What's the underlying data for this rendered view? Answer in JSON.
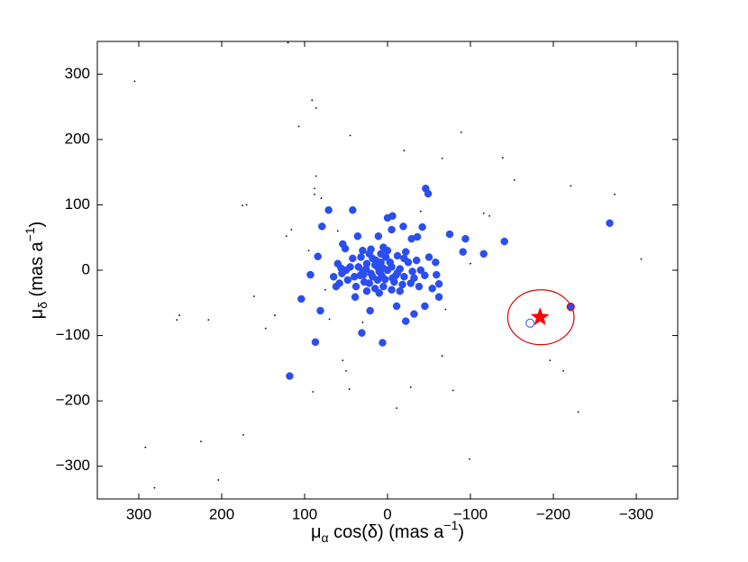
{
  "chart_data": {
    "type": "scatter",
    "xlabel": [
      "μ",
      "α",
      " cos(δ) (mas a",
      "−1",
      ")"
    ],
    "ylabel": [
      "μ",
      "δ",
      " (mas a",
      "−1",
      ")"
    ],
    "xlim": [
      350,
      -350
    ],
    "ylim": [
      -350,
      350
    ],
    "xticks": [
      300,
      200,
      100,
      0,
      {
        "value": -100,
        "label": "−100"
      },
      {
        "value": -200,
        "label": "−200"
      },
      {
        "value": -300,
        "label": "−300"
      }
    ],
    "yticks": [
      {
        "value": -300,
        "label": "−300"
      },
      {
        "value": -200,
        "label": "−200"
      },
      {
        "value": -100,
        "label": "−100"
      },
      0,
      100,
      200,
      300
    ],
    "series": [
      {
        "marker": "dot",
        "color": "#000000",
        "x": [
          305,
          91,
          86,
          107,
          120,
          45,
          -89,
          -20,
          -66,
          -139,
          -153,
          -221,
          -274,
          86,
          88,
          80,
          175,
          170,
          88,
          -306,
          122,
          116,
          -116,
          -123,
          161,
          216,
          251,
          254,
          147,
          136,
          -222,
          -196,
          -212,
          -230,
          54,
          50,
          90,
          46,
          -28,
          -11,
          -66,
          -79,
          -99,
          292,
          225,
          204,
          174,
          281,
          70,
          -70,
          60,
          -40,
          95,
          -100,
          75,
          30
        ],
        "y": [
          289,
          260,
          248,
          220,
          348,
          206,
          211,
          183,
          171,
          172,
          138,
          129,
          116,
          144,
          116,
          110,
          99,
          100,
          125,
          17,
          52,
          62,
          87,
          83,
          -40,
          -76,
          -69,
          -76,
          -89,
          -69,
          -59,
          -138,
          -154,
          -217,
          -138,
          -154,
          -186,
          -182,
          -179,
          -211,
          -131,
          -184,
          -289,
          -271,
          -262,
          -321,
          -252,
          -333,
          -75,
          -60,
          60,
          90,
          30,
          10,
          -30,
          -80
        ]
      },
      {
        "marker": "o",
        "color": "#2a4ef0",
        "x": [
          -268,
          -141,
          -116,
          -46,
          -49,
          71,
          79,
          42,
          118,
          87,
          81,
          104,
          6,
          31,
          -22,
          -32,
          -45,
          -62,
          -19,
          -42,
          -36,
          -75,
          -91,
          -94,
          -59,
          -58,
          93,
          84,
          62,
          51,
          36,
          11,
          -5,
          -6,
          0,
          -62,
          21,
          -11,
          39,
          56,
          54,
          -29,
          -54,
          29,
          0,
          5,
          10,
          -5,
          15,
          -10,
          20,
          8,
          -15,
          25,
          12,
          -20,
          30,
          2,
          18,
          -8,
          28,
          35,
          -25,
          5,
          22,
          -12,
          40,
          -30,
          15,
          32,
          -18,
          0,
          10,
          45,
          -35,
          38,
          -28,
          25,
          5,
          -5,
          48,
          -40,
          20,
          -22,
          30,
          42,
          -15,
          50,
          12,
          7,
          -3,
          18,
          -12,
          26,
          3,
          14,
          -6,
          33,
          22,
          -20,
          8,
          -32,
          55,
          -45,
          60,
          -50,
          58,
          65,
          -38
        ],
        "y": [
          72,
          44,
          25,
          125,
          117,
          92,
          67,
          92,
          -162,
          -110,
          -62,
          -44,
          -111,
          -96,
          -78,
          -67,
          -55,
          -41,
          67,
          66,
          51,
          55,
          28,
          48,
          -7,
          12,
          -7,
          21,
          -25,
          33,
          52,
          52,
          62,
          83,
          80,
          -21,
          -62,
          -55,
          -41,
          3,
          40,
          48,
          -28,
          -7,
          0,
          3,
          -2,
          5,
          8,
          -8,
          -5,
          12,
          2,
          10,
          -15,
          -10,
          -3,
          20,
          18,
          -18,
          -18,
          5,
          12,
          -25,
          25,
          22,
          -10,
          -2,
          -28,
          20,
          -22,
          30,
          -35,
          5,
          15,
          -25,
          -20,
          -32,
          35,
          -30,
          -15,
          0,
          32,
          28,
          30,
          18,
          -32,
          0,
          5,
          -8,
          12,
          -10,
          -4,
          2,
          -14,
          15,
          -12,
          -8,
          -20,
          18,
          25,
          -12,
          -5,
          -8,
          10,
          20,
          -20,
          -10,
          -25
        ]
      },
      {
        "marker": "o",
        "color": "#2a4ef0",
        "edgecolor": "#e00000",
        "x": [
          -221
        ],
        "y": [
          -56
        ]
      },
      {
        "marker": "open",
        "color": "#2a4ef0",
        "x": [
          -172
        ],
        "y": [
          -81
        ]
      },
      {
        "marker": "star",
        "color": "#ff0000",
        "x": [
          -184
        ],
        "y": [
          -72
        ]
      }
    ],
    "ellipses": [
      {
        "color": "#e00000",
        "x": -185,
        "y": -72,
        "rx": 40,
        "ry": 42
      }
    ]
  }
}
